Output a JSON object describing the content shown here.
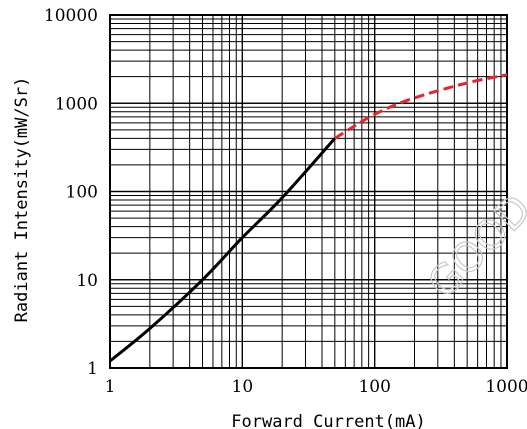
{
  "chart_data": {
    "type": "line",
    "xlabel": "Forward Current(mA)",
    "ylabel": "Radiant Intensity(mW/Sr)",
    "xscale": "log",
    "yscale": "log",
    "xlim": [
      1,
      1000
    ],
    "ylim": [
      1,
      10000
    ],
    "grid": true,
    "x_ticks": [
      "1",
      "10",
      "100",
      "1000"
    ],
    "y_ticks": [
      "1",
      "10",
      "100",
      "1000",
      "10000"
    ],
    "series": [
      {
        "style": "solid",
        "color": "#000000",
        "x": [
          1,
          2,
          5,
          10,
          20,
          50
        ],
        "y": [
          1.2,
          2.8,
          10,
          30,
          85,
          400
        ]
      },
      {
        "style": "dashed",
        "color": "#e8262a",
        "x": [
          50,
          100,
          200,
          500,
          1000
        ],
        "y": [
          400,
          750,
          1150,
          1700,
          2100
        ]
      }
    ],
    "watermark": "GOOD"
  }
}
